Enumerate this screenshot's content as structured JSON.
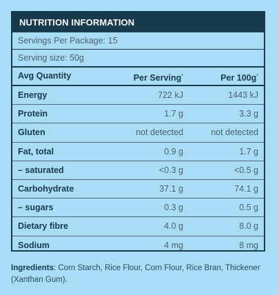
{
  "panel": {
    "title": "NUTRITION INFORMATION",
    "servings_per_package": "Servings Per Package: 15",
    "serving_size": "Serving size: 50g"
  },
  "table": {
    "headers": {
      "avg_quantity": "Avg Quantity",
      "per_serving": "Per Serving",
      "per_100g": "Per 100g",
      "asterisk": "*"
    },
    "rows": [
      {
        "name": "Energy",
        "per_serving": "722 kJ",
        "per_100g": "1443 kJ"
      },
      {
        "name": "Protein",
        "per_serving": "1.7 g",
        "per_100g": "3.3 g"
      },
      {
        "name": "Gluten",
        "per_serving": "not detected",
        "per_100g": "not detected"
      },
      {
        "name": "Fat, total",
        "per_serving": "0.9 g",
        "per_100g": "1.7 g"
      },
      {
        "name": "– saturated",
        "per_serving": "<0.3 g",
        "per_100g": "<0.5 g"
      },
      {
        "name": "Carbohydrate",
        "per_serving": "37.1 g",
        "per_100g": "74.1 g"
      },
      {
        "name": "– sugars",
        "per_serving": "0.3 g",
        "per_100g": "0.5 g"
      },
      {
        "name": "Dietary fibre",
        "per_serving": "4.0 g",
        "per_100g": "8.0 g"
      },
      {
        "name": "Sodium",
        "per_serving": "4 mg",
        "per_100g": "8 mg"
      }
    ]
  },
  "ingredients": {
    "label": "Ingredients",
    "text": ": Corn Starch, Rice Flour, Corn Flour, Rice Bran, Thickener (Xanthan Gum)."
  },
  "colors": {
    "background": "#a9dcf5",
    "header": "#173a4f"
  }
}
